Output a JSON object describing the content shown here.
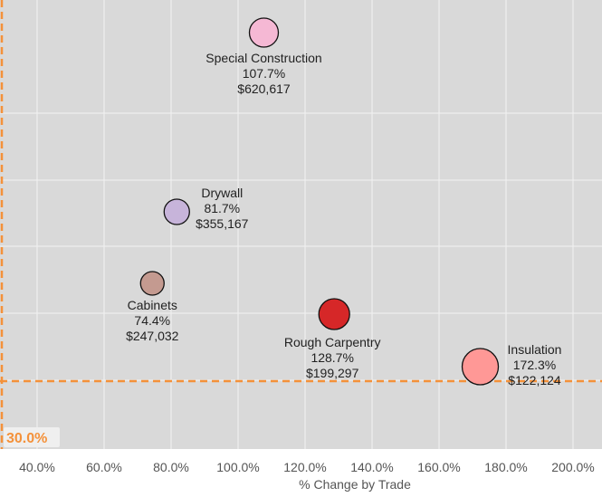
{
  "chart_data": {
    "type": "scatter",
    "xlabel": "% Change by Trade",
    "ylabel": "",
    "xlim": [
      30,
      207
    ],
    "x_ticks": [
      {
        "value": 40,
        "label": "40.0%"
      },
      {
        "value": 60,
        "label": "60.0%"
      },
      {
        "value": 80,
        "label": "80.0%"
      },
      {
        "value": 100,
        "label": "100.0%"
      },
      {
        "value": 120,
        "label": "120.0%"
      },
      {
        "value": 140,
        "label": "140.0%"
      },
      {
        "value": 160,
        "label": "160.0%"
      },
      {
        "value": 180,
        "label": "180.0%"
      },
      {
        "value": 200,
        "label": "200.0%"
      }
    ],
    "reference_lines": {
      "vertical_x": 30,
      "horizontal_label": "30.0%",
      "color": "#f4913a"
    },
    "grid": true,
    "background": "#d9d9d9",
    "points": [
      {
        "name": "Special Construction",
        "x": 107.7,
        "pct_label": "107.7%",
        "amount": 620617,
        "amount_label": "$620,617",
        "color": "#f5b8d4",
        "label_pos": "below"
      },
      {
        "name": "Drywall",
        "x": 81.7,
        "pct_label": "81.7%",
        "amount": 355167,
        "amount_label": "$355,167",
        "color": "#c7b4da",
        "label_pos": "right"
      },
      {
        "name": "Cabinets",
        "x": 74.4,
        "pct_label": "74.4%",
        "amount": 247032,
        "amount_label": "$247,032",
        "color": "#c49a90",
        "label_pos": "below"
      },
      {
        "name": "Rough Carpentry",
        "x": 128.7,
        "pct_label": "128.7%",
        "amount": 199297,
        "amount_label": "$199,297",
        "color": "#d62728",
        "label_pos": "below"
      },
      {
        "name": "Insulation",
        "x": 172.3,
        "pct_label": "172.3%",
        "amount": 122124,
        "amount_label": "$122,124",
        "color": "#ff9896",
        "label_pos": "right"
      }
    ]
  }
}
